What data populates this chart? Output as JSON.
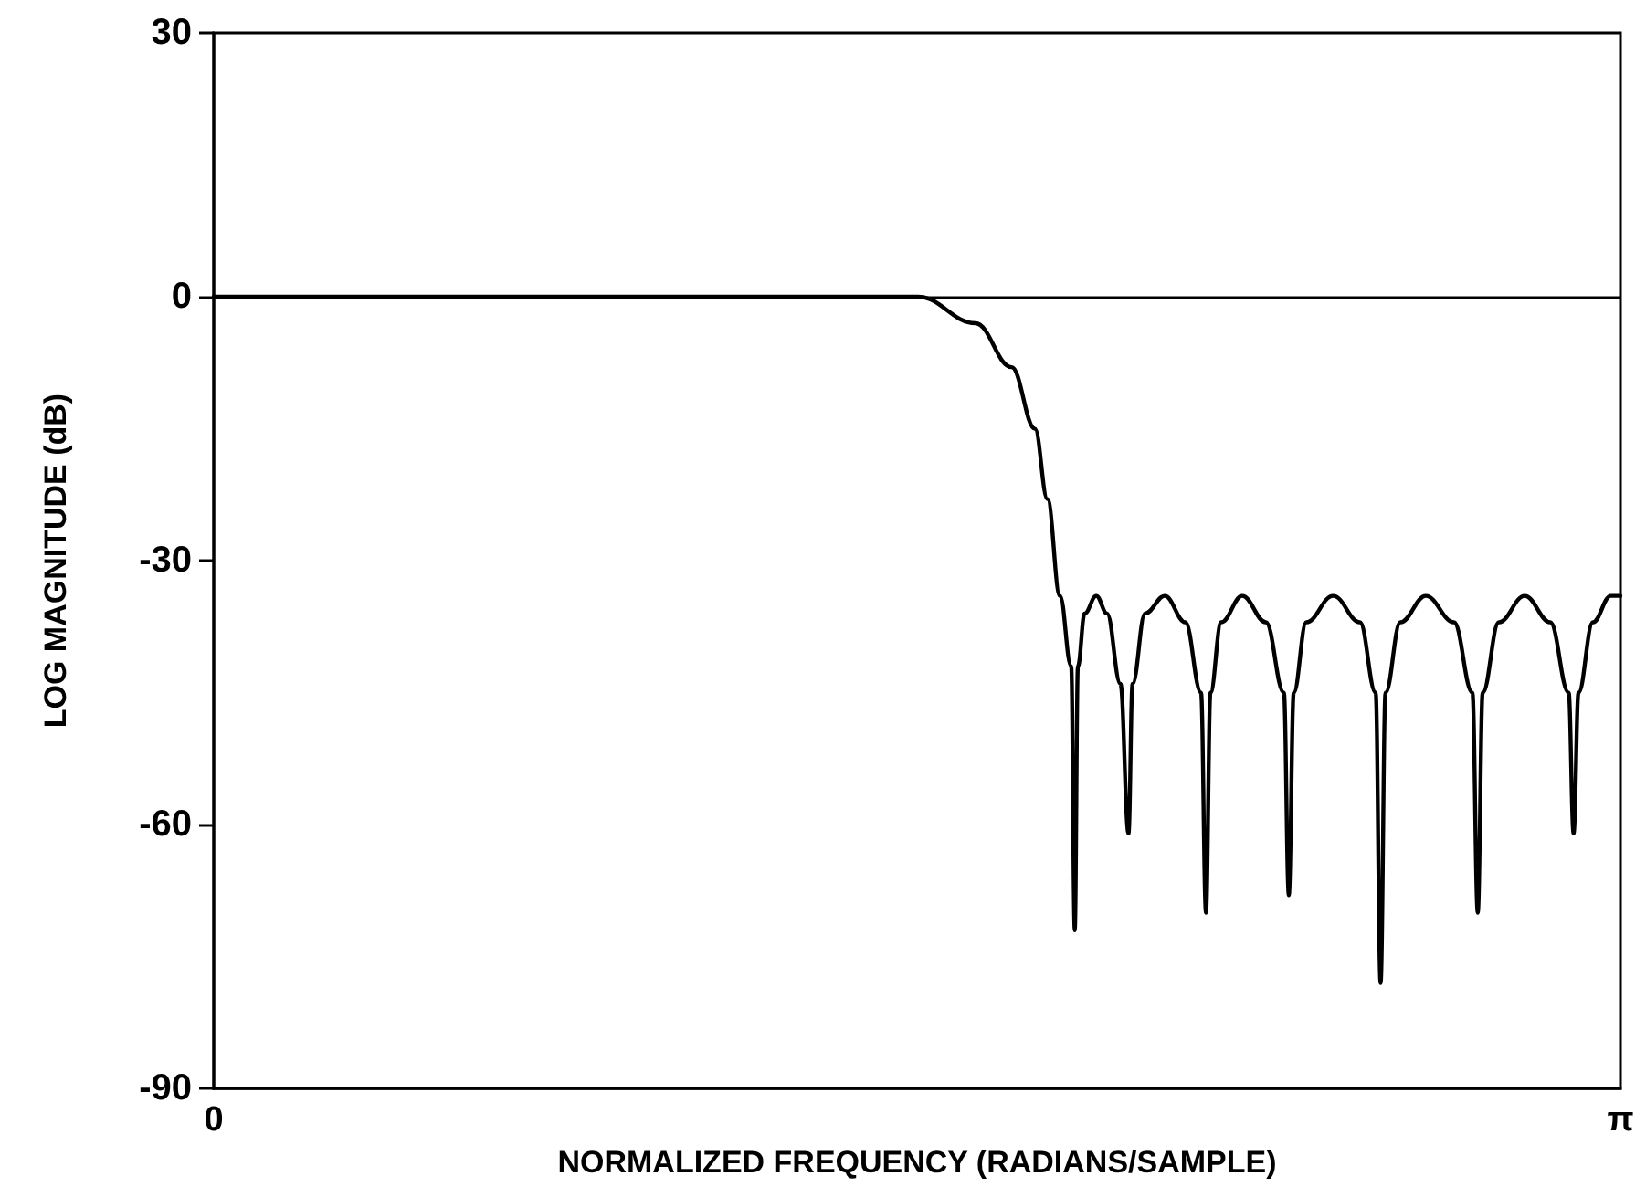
{
  "chart_data": {
    "type": "line",
    "xlabel": "NORMALIZED FREQUENCY (RADIANS/SAMPLE)",
    "ylabel": "LOG MAGNITUDE (dB)",
    "xlim": [
      0,
      3.1416
    ],
    "xticks": [
      0,
      {
        "value": 3.1416,
        "label": "π"
      }
    ],
    "ylim": [
      -90,
      30
    ],
    "yticks": [
      -90,
      -60,
      -30,
      0,
      30
    ],
    "grid": false,
    "marker": "none",
    "line_style": "solid",
    "ref_lines": [
      {
        "axis": "y",
        "value": 0,
        "color": "#000000"
      }
    ],
    "series": [
      {
        "color": "#000000",
        "x": [
          0,
          1.573,
          1.701,
          1.782,
          1.834,
          1.862,
          1.89,
          1.915,
          1.923,
          1.93,
          1.945,
          1.971,
          1.995,
          2.025,
          2.043,
          2.052,
          2.08,
          2.124,
          2.17,
          2.205,
          2.216,
          2.226,
          2.25,
          2.297,
          2.35,
          2.39,
          2.401,
          2.412,
          2.44,
          2.5,
          2.56,
          2.595,
          2.606,
          2.617,
          2.65,
          2.707,
          2.77,
          2.811,
          2.823,
          2.834,
          2.87,
          2.928,
          2.985,
          3.026,
          3.037,
          3.048,
          3.08,
          3.12,
          3.1416
        ],
        "values": [
          0,
          0,
          -3,
          -8,
          -15,
          -23,
          -34,
          -42,
          -72,
          -42,
          -36,
          -34,
          -36,
          -44,
          -61,
          -44,
          -36,
          -34,
          -37,
          -45,
          -70,
          -45,
          -37,
          -34,
          -37,
          -45,
          -68,
          -45,
          -37,
          -34,
          -37,
          -45,
          -78,
          -45,
          -37,
          -34,
          -37,
          -45,
          -70,
          -45,
          -37,
          -34,
          -37,
          -45,
          -61,
          -45,
          -37,
          -34,
          -34
        ]
      }
    ]
  }
}
